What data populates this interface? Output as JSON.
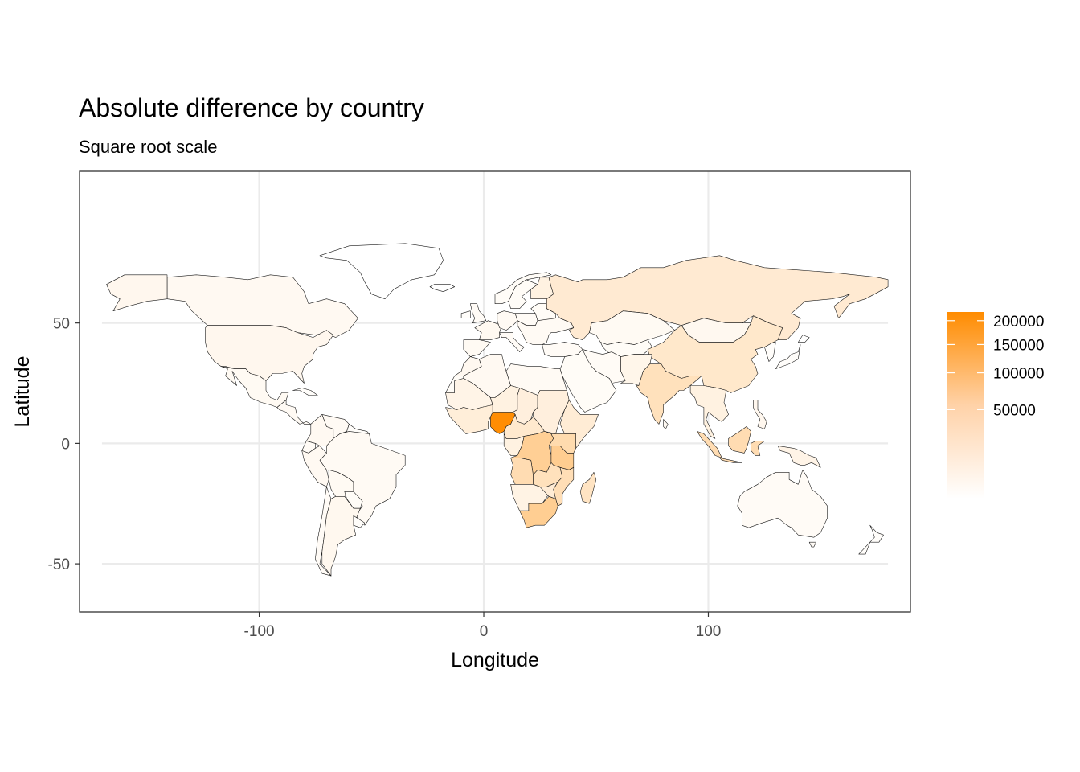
{
  "title": "Absolute difference by country",
  "subtitle": "Square root scale",
  "chart_data": {
    "type": "choropleth",
    "xlabel": "Longitude",
    "ylabel": "Latitude",
    "xlim": [
      -180,
      190
    ],
    "ylim": [
      -70,
      113
    ],
    "x_ticks": [
      -100,
      0,
      100
    ],
    "y_ticks": [
      -50,
      0,
      50
    ],
    "grid": true,
    "scale": "sqrt",
    "legend": {
      "placement": "right",
      "breaks": [
        200000,
        150000,
        100000,
        50000
      ],
      "low_color": "#ffffff",
      "high_color": "#ff8c00",
      "max": 220000
    },
    "regions": [
      {
        "name": "Nigeria",
        "value": 215000
      },
      {
        "name": "Democratic Republic of the Congo",
        "value": 38000
      },
      {
        "name": "Tanzania",
        "value": 42000
      },
      {
        "name": "South Africa",
        "value": 40000
      },
      {
        "name": "Kenya",
        "value": 22000
      },
      {
        "name": "Angola",
        "value": 20000
      },
      {
        "name": "Zambia",
        "value": 15000
      },
      {
        "name": "Mozambique",
        "value": 18000
      },
      {
        "name": "Madagascar",
        "value": 12000
      },
      {
        "name": "Ethiopia",
        "value": 6000
      },
      {
        "name": "Sudan",
        "value": 4000
      },
      {
        "name": "Niger",
        "value": 3000
      },
      {
        "name": "Chad",
        "value": 4000
      },
      {
        "name": "Mali",
        "value": 2000
      },
      {
        "name": "Cameroon",
        "value": 8000
      },
      {
        "name": "Russia",
        "value": 7000
      },
      {
        "name": "China",
        "value": 9000
      },
      {
        "name": "India",
        "value": 15000
      },
      {
        "name": "Indonesia",
        "value": 20000
      },
      {
        "name": "Mongolia",
        "value": 800
      },
      {
        "name": "Kazakhstan",
        "value": 500
      },
      {
        "name": "United States",
        "value": 1000
      },
      {
        "name": "Canada",
        "value": 600
      },
      {
        "name": "Brazil",
        "value": 400
      },
      {
        "name": "Argentina",
        "value": 900
      },
      {
        "name": "Australia",
        "value": 300
      },
      {
        "name": "Greenland",
        "value": 0
      },
      {
        "name": "Finland",
        "value": 3000
      }
    ]
  }
}
